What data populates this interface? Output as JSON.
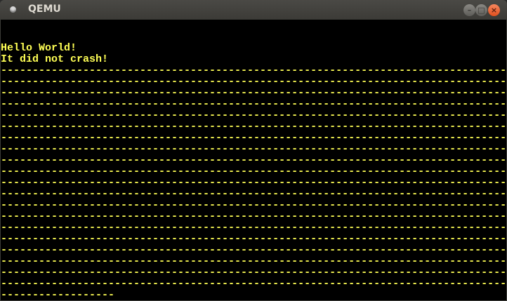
{
  "window": {
    "title": "QEMU",
    "buttons": {
      "minimize": "–",
      "maximize": "□",
      "close": "×"
    }
  },
  "screen": {
    "text_color": "#ffff55",
    "lines": [
      "",
      "",
      "Hello World!",
      "It did not crash!",
      "--------------------------------------------------------------------------------",
      "--------------------------------------------------------------------------------",
      "--------------------------------------------------------------------------------",
      "--------------------------------------------------------------------------------",
      "--------------------------------------------------------------------------------",
      "--------------------------------------------------------------------------------",
      "--------------------------------------------------------------------------------",
      "--------------------------------------------------------------------------------",
      "--------------------------------------------------------------------------------",
      "--------------------------------------------------------------------------------",
      "--------------------------------------------------------------------------------",
      "--------------------------------------------------------------------------------",
      "--------------------------------------------------------------------------------",
      "--------------------------------------------------------------------------------",
      "--------------------------------------------------------------------------------",
      "--------------------------------------------------------------------------------",
      "--------------------------------------------------------------------------------",
      "--------------------------------------------------------------------------------",
      "--------------------------------------------------------------------------------",
      "--------------------------------------------------------------------------------",
      "------------------"
    ]
  }
}
